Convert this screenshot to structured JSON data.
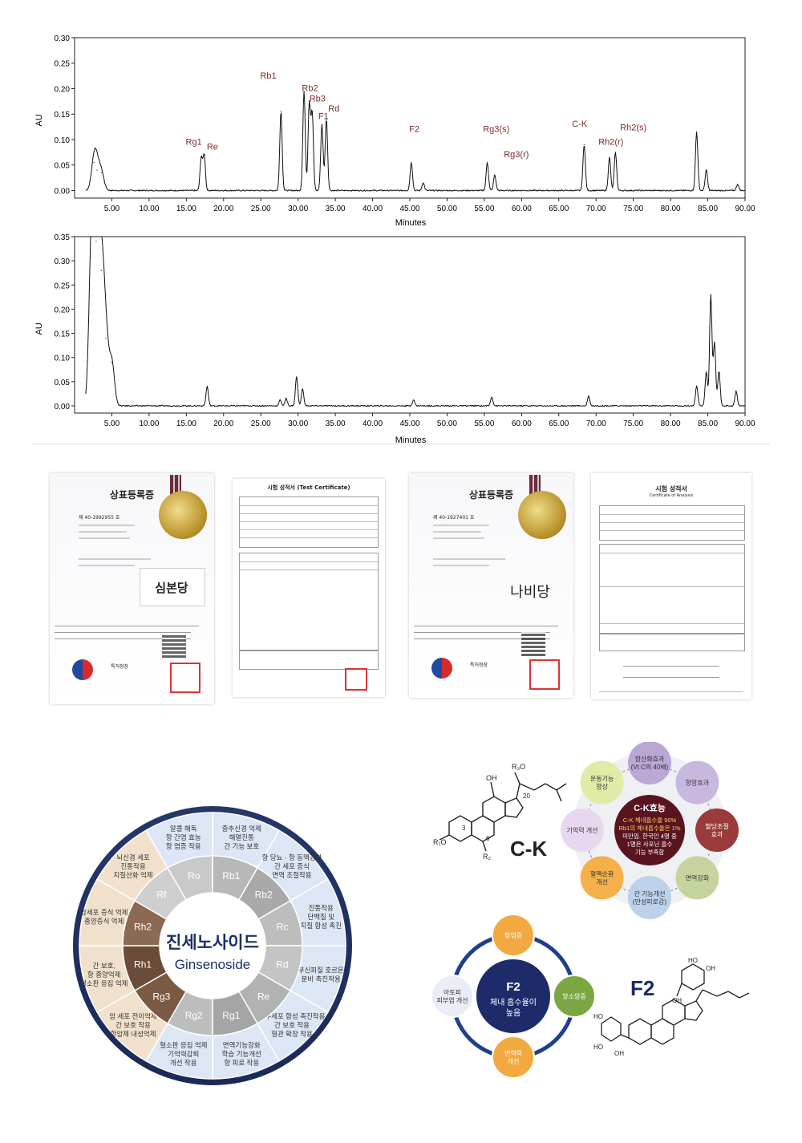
{
  "chart_data": [
    {
      "type": "line",
      "xlabel": "Minutes",
      "ylabel": "AU",
      "xlim": [
        0,
        90
      ],
      "ylim": [
        -0.015,
        0.3
      ],
      "x_ticks": [
        "5.00",
        "10.00",
        "15.00",
        "20.00",
        "25.00",
        "30.00",
        "35.00",
        "40.00",
        "45.00",
        "50.00",
        "55.00",
        "60.00",
        "65.00",
        "70.00",
        "75.00",
        "80.00",
        "85.00",
        "90.00"
      ],
      "y_ticks": [
        "0.00",
        "0.05",
        "0.10",
        "0.15",
        "0.20",
        "0.25",
        "0.30"
      ],
      "peaks": [
        {
          "x": 2.6,
          "y": 0.055
        },
        {
          "x": 3.0,
          "y": 0.04
        },
        {
          "x": 3.6,
          "y": 0.035
        },
        {
          "x": 17.0,
          "y": 0.065
        },
        {
          "x": 17.4,
          "y": 0.07
        },
        {
          "x": 27.7,
          "y": 0.155
        },
        {
          "x": 30.8,
          "y": 0.195
        },
        {
          "x": 31.5,
          "y": 0.17
        },
        {
          "x": 31.9,
          "y": 0.15
        },
        {
          "x": 33.2,
          "y": 0.13
        },
        {
          "x": 33.8,
          "y": 0.14
        },
        {
          "x": 45.2,
          "y": 0.055
        },
        {
          "x": 46.8,
          "y": 0.015
        },
        {
          "x": 55.4,
          "y": 0.055
        },
        {
          "x": 56.4,
          "y": 0.03
        },
        {
          "x": 68.4,
          "y": 0.09
        },
        {
          "x": 71.8,
          "y": 0.065
        },
        {
          "x": 72.6,
          "y": 0.075
        },
        {
          "x": 83.5,
          "y": 0.115
        },
        {
          "x": 84.8,
          "y": 0.04
        },
        {
          "x": 89.0,
          "y": 0.012
        }
      ],
      "annotations": [
        {
          "label": "Rg1",
          "x": 16.0,
          "y": 0.09
        },
        {
          "label": "Re",
          "x": 18.5,
          "y": 0.08
        },
        {
          "label": "Rb1",
          "x": 26.0,
          "y": 0.22
        },
        {
          "label": "Rb2",
          "x": 31.6,
          "y": 0.195
        },
        {
          "label": "Rb3",
          "x": 32.6,
          "y": 0.175
        },
        {
          "label": "F1",
          "x": 33.4,
          "y": 0.14
        },
        {
          "label": "Rd",
          "x": 34.8,
          "y": 0.155
        },
        {
          "label": "F2",
          "x": 45.6,
          "y": 0.115
        },
        {
          "label": "Rg3(s)",
          "x": 56.6,
          "y": 0.115
        },
        {
          "label": "Rg3(r)",
          "x": 59.3,
          "y": 0.065
        },
        {
          "label": "C-K",
          "x": 67.8,
          "y": 0.125
        },
        {
          "label": "Rh2(r)",
          "x": 72.0,
          "y": 0.09
        },
        {
          "label": "Rh2(s)",
          "x": 75.0,
          "y": 0.118
        }
      ]
    },
    {
      "type": "line",
      "xlabel": "Minutes",
      "ylabel": "AU",
      "xlim": [
        0,
        90
      ],
      "ylim": [
        -0.015,
        0.35
      ],
      "x_ticks": [
        "5.00",
        "10.00",
        "15.00",
        "20.00",
        "25.00",
        "30.00",
        "35.00",
        "40.00",
        "45.00",
        "50.00",
        "55.00",
        "60.00",
        "65.00",
        "70.00",
        "75.00",
        "80.00",
        "85.00",
        "90.00"
      ],
      "y_ticks": [
        "0.00",
        "0.05",
        "0.10",
        "0.15",
        "0.20",
        "0.25",
        "0.30",
        "0.35"
      ],
      "peaks": [
        {
          "x": 2.3,
          "y": 0.35
        },
        {
          "x": 2.9,
          "y": 0.34
        },
        {
          "x": 3.6,
          "y": 0.28
        },
        {
          "x": 4.2,
          "y": 0.14
        },
        {
          "x": 5.0,
          "y": 0.09
        },
        {
          "x": 17.8,
          "y": 0.04
        },
        {
          "x": 27.6,
          "y": 0.012
        },
        {
          "x": 28.4,
          "y": 0.015
        },
        {
          "x": 29.8,
          "y": 0.06
        },
        {
          "x": 30.6,
          "y": 0.035
        },
        {
          "x": 45.5,
          "y": 0.012
        },
        {
          "x": 56.0,
          "y": 0.018
        },
        {
          "x": 69.0,
          "y": 0.02
        },
        {
          "x": 83.5,
          "y": 0.04
        },
        {
          "x": 84.8,
          "y": 0.07
        },
        {
          "x": 85.4,
          "y": 0.23
        },
        {
          "x": 85.9,
          "y": 0.13
        },
        {
          "x": 86.5,
          "y": 0.07
        },
        {
          "x": 88.8,
          "y": 0.03
        }
      ]
    }
  ],
  "certificates": [
    {
      "title": "상표등록증",
      "number": "제 40-1992955 호",
      "brand": "심본당",
      "office": "특허청장"
    },
    {
      "title": "시험 성적서 (Test Certificate)"
    },
    {
      "title": "상표등록증",
      "number": "제 40-1927401 호",
      "brand": "나비당",
      "office": "특허청장"
    },
    {
      "title": "시험 성적서",
      "subtitle": "Certificate of Analysis"
    }
  ],
  "ginsenoside": {
    "center_kr": "진세노사이드",
    "center_en": "Ginsenoside",
    "items": [
      {
        "code": "Ro",
        "effect": "알콜 해독\n항 간염 효능\n항 염증 작용"
      },
      {
        "code": "Rb1",
        "effect": "중추신경 억제\n해열진통\n간 기능 보호"
      },
      {
        "code": "Rb2",
        "effect": "항 당뇨 · 항 동맥경화\n간 세포 증식\n면역 조절작용"
      },
      {
        "code": "Rc",
        "effect": "진통작용\n단백질 및\n지질 합성 촉진"
      },
      {
        "code": "Rd",
        "effect": "부신피질 호르몬\n분비 촉진작용"
      },
      {
        "code": "Re",
        "effect": "골수세포 합성 촉진작용\n간 보호 작용\n혈관 확장 작용"
      },
      {
        "code": "Rg1",
        "effect": "면역기능강화\n학습 기능개선\n항 피로 작용"
      },
      {
        "code": "Rg2",
        "effect": "혈소판 응집 억제\n기억력감퇴\n개선 작용"
      },
      {
        "code": "Rg3",
        "effect": "암 세포 전이억제\n간 보호 작용\n항암제 내성억제"
      },
      {
        "code": "Rh1",
        "effect": "간 보호,\n항 종양억제\n혈소판 응집 억제"
      },
      {
        "code": "Rh2",
        "effect": "암세포 증식 억제\n종양증식 억제"
      },
      {
        "code": "Rf",
        "effect": "뇌신경 세포\n진통작용\n지질산화 억제"
      }
    ]
  },
  "ck": {
    "label": "C-K",
    "center_title": "C-K효능",
    "center_body": "C-K 체내흡수율 90%\nRb1의 체내흡수율은 1%\n미만임. 한국인 4명 중\n1명은 사포닌 흡수\n기능 부족함",
    "effects": [
      "항산화효과\n(Vt C의 40배)",
      "항암효과",
      "혈당조절\n효과",
      "면역강화",
      "간 기능개선\n(만성피로감)",
      "혈액순환\n개선",
      "기억력 개선",
      "운동기능\n향상"
    ]
  },
  "f2": {
    "label": "F2",
    "center_title": "F2",
    "center_body": "체내 흡수율이\n높음",
    "effects": [
      "항염증",
      "항소양증",
      "면역력\n개선",
      "아토피\n피부염 개선"
    ]
  }
}
